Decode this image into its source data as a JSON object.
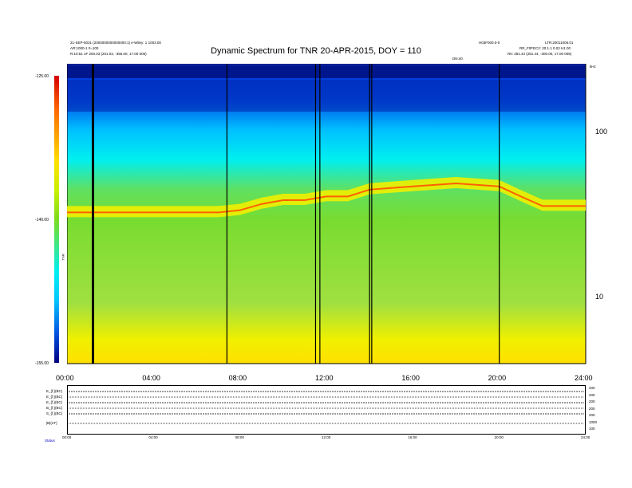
{
  "title": "Dynamic Spectrum for TNR 20-APR-2015, DOY = 110",
  "header_left": [
    "21-SEP-5031 (2000000000000000:1) e-Wiley: 1 1003.00",
    "AR:1000-1 #=100",
    "R:10:51 1F   200.03 (201.03, -355.00, 17.00 005)"
  ],
  "header_right_top": "LTR:20011005.01",
  "header_center_small": "H03F000.0-0",
  "header_right_rows": [
    "RR_F0FEC2: 20.1.1 0.02 H1.00",
    "R0:   281.44 (281.44, -300.00, 17.00 005)"
  ],
  "small_text_right": "DN:40",
  "colorbar_ticks": [
    "-125.00",
    "-140.00",
    "-155.00"
  ],
  "colorbar_label": "TNR",
  "yaxis_ticks": [
    "100",
    "10"
  ],
  "yaxis_top_label": "kHz",
  "xaxis_ticks": [
    "00:00",
    "04:00",
    "08:00",
    "12:00",
    "16:00",
    "20:00",
    "24:00"
  ],
  "panel_labels": [
    "E_{f,}(BC)",
    "E_{f,}(BC)",
    "E_{f,}(BC)",
    "B_{f,}(BC)",
    "S_{f,}(BC)",
    "|B|(nT)"
  ],
  "panel_right_ticks": [
    "200",
    "200",
    "200",
    "200",
    "200",
    "1000",
    "100"
  ],
  "panel_x_ticks": [
    "00:00",
    "04:00",
    "08:00",
    "12:00",
    "16:00",
    "20:00",
    "24:00"
  ],
  "footer_label": "Status",
  "chart_data": {
    "type": "heatmap",
    "title": "Dynamic Spectrum for TNR 20-APR-2015, DOY = 110",
    "x_range_hours": [
      0,
      24
    ],
    "y_scale": "log",
    "y_ticks_khz": [
      10,
      100
    ],
    "colorbar_range": [
      -155,
      -125
    ],
    "vertical_gaps_hours": [
      1.2,
      7.4,
      11.5,
      11.7,
      14.0,
      14.1,
      20.0
    ],
    "emission_band_khz": [
      [
        0,
        32
      ],
      [
        1,
        32
      ],
      [
        2,
        32
      ],
      [
        3,
        32
      ],
      [
        4,
        32
      ],
      [
        5,
        32
      ],
      [
        6,
        32
      ],
      [
        7,
        32
      ],
      [
        8,
        33
      ],
      [
        9,
        36
      ],
      [
        10,
        38
      ],
      [
        11,
        38
      ],
      [
        12,
        40
      ],
      [
        13,
        40
      ],
      [
        14,
        44
      ],
      [
        15,
        45
      ],
      [
        16,
        46
      ],
      [
        17,
        47
      ],
      [
        18,
        48
      ],
      [
        19,
        47
      ],
      [
        20,
        46
      ],
      [
        21,
        40
      ],
      [
        22,
        35
      ],
      [
        23,
        35
      ],
      [
        24,
        35
      ]
    ]
  }
}
